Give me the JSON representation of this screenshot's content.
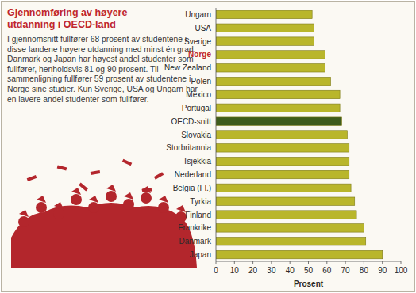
{
  "chart_data": {
    "type": "bar",
    "orientation": "horizontal",
    "title": "Gjennomføring av høyere utdanning i OECD-land",
    "annotations": [
      "I gjennomsnitt fullfører 68 prosent av studentene i disse landene høyere utdanning med minst én grad. Danmark og Japan har høyest andel studenter som fullfører, henholdsvis 81 og 90 prosent. Til sammenligning fullfører 59 prosent av studentene i Norge sine studier. Kun Sverige, USA og Ungarn har en lavere andel studenter som fullfører."
    ],
    "x_label": "Prosent",
    "categories": [
      "Ungarn",
      "USA",
      "Sverige",
      "Norge",
      "New Zealand",
      "Polen",
      "Mexico",
      "Portugal",
      "OECD-snitt",
      "Slovakia",
      "Storbritannia",
      "Tsjekkia",
      "Nederland",
      "Belgia (Fl.)",
      "Tyrkia",
      "Finland",
      "Frankrike",
      "Danmark",
      "Japan"
    ],
    "values": [
      52,
      53,
      53,
      59,
      59,
      62,
      67,
      67,
      68,
      71,
      72,
      72,
      72,
      73,
      75,
      76,
      80,
      81,
      90
    ],
    "colors": [
      "#b9b62b",
      "#b9b62b",
      "#b9b62b",
      "#b9b62b",
      "#b9b62b",
      "#b9b62b",
      "#b9b62b",
      "#b9b62b",
      "#3e5c1d",
      "#b9b62b",
      "#b9b62b",
      "#b9b62b",
      "#b9b62b",
      "#b9b62b",
      "#b9b62b",
      "#b9b62b",
      "#b9b62b",
      "#b9b62b",
      "#b9b62b"
    ],
    "xlim": [
      0,
      100
    ],
    "xticks": [
      0,
      10,
      20,
      30,
      40,
      50,
      60,
      70,
      80,
      90,
      100
    ],
    "grid": false
  }
}
